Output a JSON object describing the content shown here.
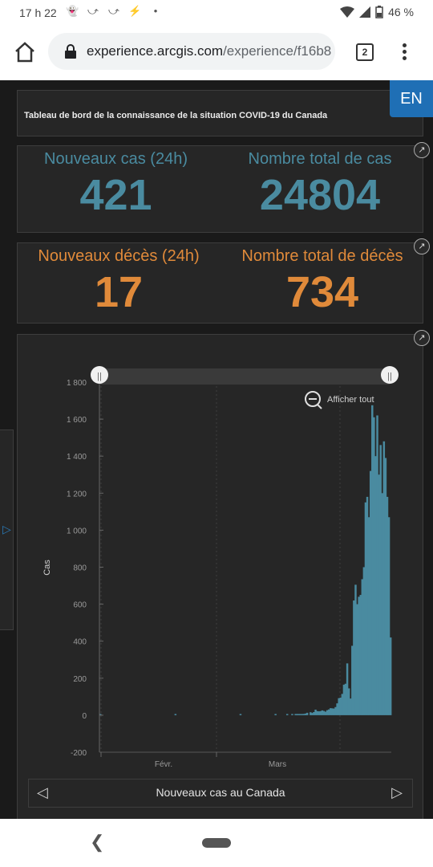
{
  "status_bar": {
    "time": "17 h 22",
    "battery": "46 %",
    "notification_icons": [
      "snapchat-icon",
      "missed-call-icon",
      "missed-call-icon",
      "messenger-icon",
      "dot-icon"
    ]
  },
  "browser": {
    "url_host": "experience.arcgis.com",
    "url_path": "/experience/f16b8",
    "tab_count": "2"
  },
  "dashboard": {
    "title": "Tableau de bord de la connaissance de la situation COVID-19 du Canada",
    "language_button": "EN",
    "cases": {
      "new_label": "Nouveaux cas (24h)",
      "new_value": "421",
      "total_label": "Nombre total de cas",
      "total_value": "24804"
    },
    "deaths": {
      "new_label": "Nouveaux décès (24h)",
      "new_value": "17",
      "total_label": "Nombre total de décès",
      "total_value": "734"
    },
    "chart_footer": {
      "caption": "Nouveaux cas au Canada"
    },
    "reset_zoom_label": "Afficher tout",
    "colors": {
      "cases_blue": "#4a8ba0",
      "deaths_orange": "#e08a3a",
      "bar": "#4a8ba0",
      "accent_blue": "#1f6fb5"
    }
  },
  "chart_data": {
    "type": "bar",
    "title": "",
    "ylabel": "Cas",
    "xlabel": "",
    "ylim": [
      -200,
      1800
    ],
    "yticks": [
      "1 800",
      "1 600",
      "1 400",
      "1 200",
      "1 000",
      "800",
      "600",
      "400",
      "200",
      "0",
      "-200"
    ],
    "ytick_values": [
      1800,
      1600,
      1400,
      1200,
      1000,
      800,
      600,
      400,
      200,
      0,
      -200
    ],
    "xticks": [
      "Févr.",
      "Mars"
    ],
    "grid": true,
    "values": [
      1,
      0,
      0,
      0,
      0,
      0,
      0,
      0,
      0,
      0,
      0,
      0,
      0,
      0,
      0,
      0,
      0,
      0,
      0,
      0,
      0,
      0,
      0,
      0,
      0,
      0,
      0,
      0,
      0,
      0,
      0,
      0,
      0,
      0,
      0,
      0,
      0,
      0,
      0,
      0,
      0,
      0,
      0,
      0,
      0,
      3,
      0,
      0,
      0,
      0,
      0,
      0,
      0,
      0,
      0,
      0,
      0,
      0,
      0,
      0,
      0,
      0,
      0,
      0,
      0,
      0,
      0,
      0,
      0,
      0,
      0,
      0,
      0,
      0,
      0,
      0,
      0,
      0,
      0,
      0,
      0,
      0,
      0,
      0,
      1,
      0,
      0,
      0,
      0,
      0,
      0,
      0,
      0,
      0,
      0,
      0,
      0,
      0,
      0,
      0,
      0,
      0,
      0,
      0,
      0,
      1,
      0,
      0,
      0,
      0,
      0,
      0,
      1,
      0,
      0,
      3,
      0,
      4,
      5,
      5,
      6,
      4,
      7,
      9,
      13,
      0,
      16,
      12,
      17,
      30,
      22,
      21,
      22,
      26,
      23,
      19,
      27,
      31,
      38,
      37,
      36,
      44,
      64,
      92,
      95,
      115,
      165,
      170,
      280,
      145,
      90,
      375,
      620,
      705,
      600,
      640,
      650,
      735,
      800,
      1150,
      1180,
      1070,
      1320,
      1675,
      1610,
      1400,
      1620,
      1300,
      1460,
      1200,
      1480,
      1390,
      1180,
      1070,
      420
    ]
  }
}
